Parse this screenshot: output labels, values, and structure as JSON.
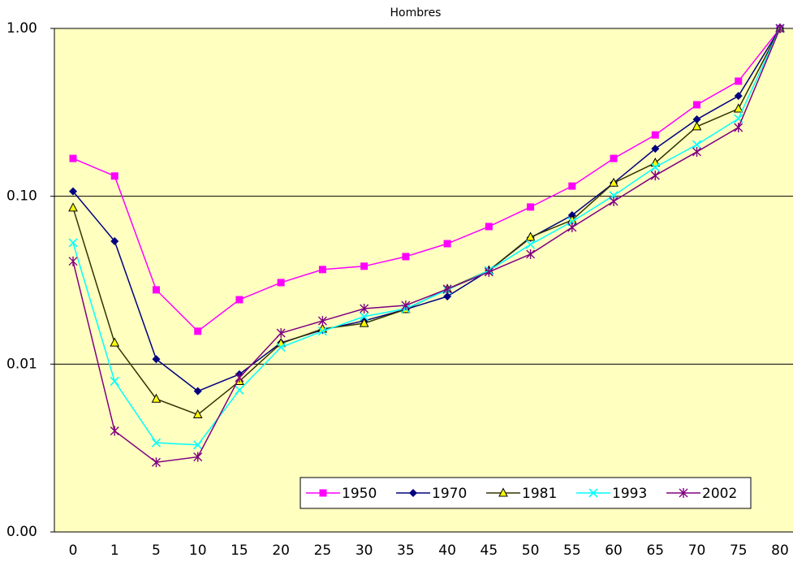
{
  "chart_data": {
    "type": "line",
    "title": "Hombres",
    "categories": [
      "0",
      "1",
      "5",
      "10",
      "15",
      "20",
      "25",
      "30",
      "35",
      "40",
      "45",
      "50",
      "55",
      "60",
      "65",
      "70",
      "75",
      "80"
    ],
    "ylim": [
      0.001,
      1
    ],
    "log_scale": true,
    "grid": true,
    "legend_position": "lower right",
    "yticks": [
      {
        "value": 0.001,
        "label": "0.00"
      },
      {
        "value": 0.01,
        "label": "0.01"
      },
      {
        "value": 0.1,
        "label": "0.10"
      },
      {
        "value": 1,
        "label": "1.00"
      }
    ],
    "plot_background": "#ffffc0",
    "series": [
      {
        "name": "1950",
        "color": "#ff00ff",
        "marker": "square",
        "marker_color": "#ff00ff",
        "values": [
          0.168,
          0.132,
          0.0277,
          0.0157,
          0.0242,
          0.0306,
          0.0366,
          0.0383,
          0.0437,
          0.0522,
          0.066,
          0.0863,
          0.115,
          0.168,
          0.232,
          0.351,
          0.485,
          1.0
        ]
      },
      {
        "name": "1970",
        "color": "#000080",
        "marker": "diamond",
        "marker_color": "#000080",
        "values": [
          0.107,
          0.054,
          0.0107,
          0.0069,
          0.0087,
          0.0134,
          0.016,
          0.0181,
          0.0212,
          0.0253,
          0.0361,
          0.0565,
          0.0771,
          0.12,
          0.192,
          0.287,
          0.396,
          1.0
        ]
      },
      {
        "name": "1981",
        "color": "#333300",
        "marker": "triangle",
        "marker_color": "#ffff00",
        "values": [
          0.0853,
          0.0134,
          0.0062,
          0.005,
          0.0079,
          0.0133,
          0.0162,
          0.0175,
          0.0212,
          0.028,
          0.0361,
          0.0571,
          0.0721,
          0.12,
          0.158,
          0.26,
          0.332,
          1.0
        ]
      },
      {
        "name": "1993",
        "color": "#00ffff",
        "marker": "x",
        "marker_color": "#00ffff",
        "values": [
          0.0528,
          0.0079,
          0.0034,
          0.0033,
          0.007,
          0.0126,
          0.0157,
          0.0192,
          0.0214,
          0.0277,
          0.0361,
          0.0516,
          0.0706,
          0.101,
          0.149,
          0.203,
          0.29,
          1.0
        ]
      },
      {
        "name": "2002",
        "color": "#800080",
        "marker": "star",
        "marker_color": "#800080",
        "values": [
          0.041,
          0.004,
          0.0026,
          0.0028,
          0.0083,
          0.0153,
          0.0181,
          0.0214,
          0.0224,
          0.028,
          0.0354,
          0.0452,
          0.0653,
          0.0933,
          0.133,
          0.184,
          0.257,
          1.0
        ]
      }
    ]
  }
}
